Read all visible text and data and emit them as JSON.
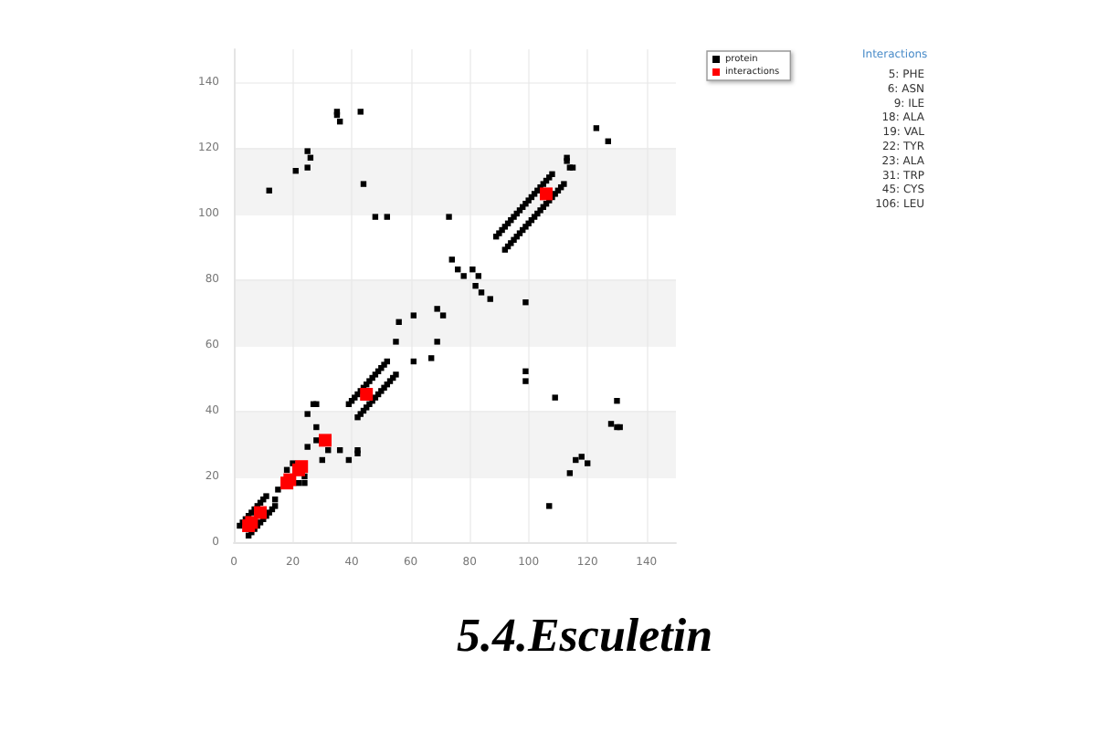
{
  "chart_data": {
    "type": "scatter",
    "title": "5.4.Esculetin",
    "xlim": [
      0,
      150
    ],
    "ylim": [
      0,
      150
    ],
    "xticks": [
      0,
      20,
      40,
      60,
      80,
      100,
      120,
      140
    ],
    "yticks": [
      0,
      20,
      40,
      60,
      80,
      100,
      120,
      140
    ],
    "grid": true,
    "legend": "top right",
    "marker": "square",
    "annotations": [
      "Interactions",
      "5: PHE",
      "6: ASN",
      "9: ILE",
      "18: ALA",
      "19: VAL",
      "22: TYR",
      "23: ALA",
      "31: TRP",
      "45: CYS",
      "106: LEU"
    ],
    "series": [
      {
        "name": "protein",
        "color": "#000000",
        "x": [
          2,
          3,
          4,
          5,
          6,
          7,
          8,
          9,
          10,
          11,
          5,
          6,
          7,
          8,
          9,
          10,
          11,
          12,
          13,
          14,
          15,
          14,
          18,
          20,
          22,
          24,
          24,
          25,
          27,
          28,
          28,
          28,
          30,
          32,
          36,
          39,
          42,
          42,
          25,
          39,
          40,
          41,
          42,
          43,
          44,
          45,
          46,
          47,
          48,
          49,
          50,
          51,
          52,
          42,
          43,
          44,
          45,
          46,
          47,
          48,
          49,
          50,
          51,
          52,
          53,
          54,
          55,
          55,
          56,
          61,
          61,
          67,
          69,
          69,
          71,
          74,
          76,
          78,
          81,
          82,
          83,
          84,
          87,
          73,
          48,
          52,
          44,
          43,
          35,
          35,
          36,
          12,
          21,
          25,
          25,
          26,
          89,
          90,
          91,
          92,
          93,
          94,
          95,
          96,
          97,
          98,
          99,
          100,
          101,
          102,
          103,
          104,
          105,
          106,
          107,
          108,
          92,
          93,
          94,
          95,
          96,
          97,
          98,
          99,
          100,
          101,
          102,
          103,
          104,
          105,
          106,
          107,
          108,
          109,
          110,
          111,
          112,
          113,
          114,
          115,
          113,
          123,
          127,
          99,
          99,
          99,
          109,
          130,
          128,
          130,
          131,
          116,
          118,
          120,
          114,
          107
        ],
        "values": [
          5,
          6,
          7,
          8,
          9,
          10,
          11,
          12,
          13,
          14,
          2,
          3,
          4,
          5,
          6,
          7,
          8,
          9,
          10,
          11,
          16,
          13,
          22,
          24,
          18,
          18,
          20,
          39,
          42,
          42,
          35,
          31,
          25,
          28,
          28,
          25,
          27,
          28,
          29,
          42,
          43,
          44,
          45,
          46,
          47,
          48,
          49,
          50,
          51,
          52,
          53,
          54,
          55,
          38,
          39,
          40,
          41,
          42,
          43,
          44,
          45,
          46,
          47,
          48,
          49,
          50,
          51,
          61,
          67,
          69,
          55,
          56,
          61,
          71,
          69,
          86,
          83,
          81,
          83,
          78,
          81,
          76,
          74,
          99,
          99,
          99,
          109,
          131,
          131,
          130,
          128,
          107,
          113,
          119,
          114,
          117,
          93,
          94,
          95,
          96,
          97,
          98,
          99,
          100,
          101,
          102,
          103,
          104,
          105,
          106,
          107,
          108,
          109,
          110,
          111,
          112,
          89,
          90,
          91,
          92,
          93,
          94,
          95,
          96,
          97,
          98,
          99,
          100,
          101,
          102,
          103,
          104,
          105,
          106,
          107,
          108,
          109,
          116,
          114,
          114,
          117,
          126,
          122,
          73,
          52,
          49,
          44,
          43,
          36,
          35,
          35,
          25,
          26,
          24,
          21,
          11
        ]
      },
      {
        "name": "interactions",
        "color": "#ff0000",
        "x": [
          5,
          6,
          9,
          18,
          19,
          22,
          23,
          31,
          45,
          106
        ],
        "values": [
          5,
          6,
          9,
          18,
          19,
          22,
          23,
          31,
          45,
          106
        ]
      }
    ]
  }
}
